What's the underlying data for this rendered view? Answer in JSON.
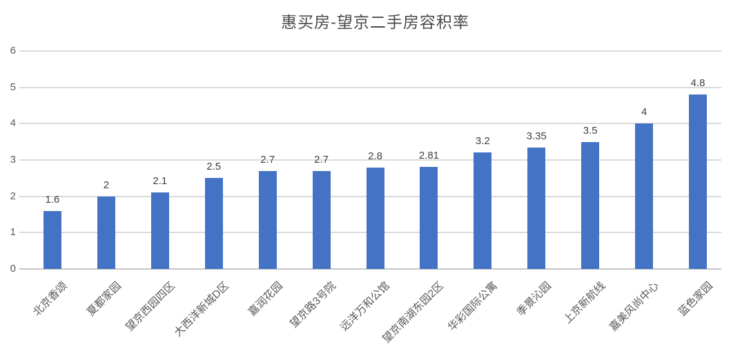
{
  "chart_data": {
    "type": "bar",
    "title": "惠买房-望京二手房容积率",
    "categories": [
      "北京香颂",
      "夏都家园",
      "望京西园四区",
      "大西洋新城D区",
      "嘉润花园",
      "望京路3号院",
      "远洋万和公馆",
      "望京南湖东园2区",
      "华彩国际公寓",
      "季景沁园",
      "上京新航线",
      "嘉美风尚中心",
      "蓝色家园"
    ],
    "values": [
      1.6,
      2,
      2.1,
      2.5,
      2.7,
      2.7,
      2.8,
      2.81,
      3.2,
      3.35,
      3.5,
      4,
      4.8
    ],
    "value_labels": [
      "1.6",
      "2",
      "2.1",
      "2.5",
      "2.7",
      "2.7",
      "2.8",
      "2.81",
      "3.2",
      "3.35",
      "3.5",
      "4",
      "4.8"
    ],
    "xlabel": "",
    "ylabel": "",
    "ylim": [
      0,
      6
    ],
    "yticks": [
      0,
      1,
      2,
      3,
      4,
      5,
      6
    ],
    "grid": "horizontal",
    "legend": "none",
    "colors": {
      "bar": "#4472C4",
      "gridline": "#dadada",
      "axis_line": "#c6c6c6",
      "tick_label": "#595959",
      "value_label": "#3f3f3f",
      "title": "#4a4a4a",
      "background": "#ffffff"
    }
  }
}
